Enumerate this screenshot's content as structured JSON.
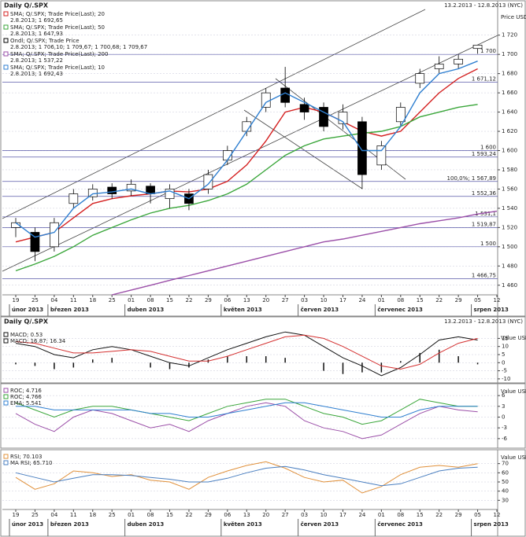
{
  "chart_data": [
    {
      "type": "candlestick",
      "title": "Daily Q/.SPX",
      "date_range": "13.2.2013 - 12.8.2013 (NYC)",
      "axis_label": "Price USD",
      "ylim": [
        1450,
        1750
      ],
      "yticks": [
        {
          "value": 1460,
          "label": "1 460"
        },
        {
          "value": 1480,
          "label": "1 480"
        },
        {
          "value": 1500,
          "label": "1 500"
        },
        {
          "value": 1520,
          "label": "1 520"
        },
        {
          "value": 1540,
          "label": "1 540"
        },
        {
          "value": 1560,
          "label": "1 560"
        },
        {
          "value": 1580,
          "label": "1 580"
        },
        {
          "value": 1600,
          "label": "1 600"
        },
        {
          "value": 1620,
          "label": "1 620"
        },
        {
          "value": 1640,
          "label": "1 640"
        },
        {
          "value": 1660,
          "label": "1 660"
        },
        {
          "value": 1680,
          "label": "1 680"
        },
        {
          "value": 1700,
          "label": "1 700"
        },
        {
          "value": 1720,
          "label": "1 720"
        }
      ],
      "categories": [
        "19",
        "25",
        "04",
        "11",
        "18",
        "25",
        "01",
        "08",
        "15",
        "22",
        "29",
        "06",
        "13",
        "20",
        "27",
        "03",
        "10",
        "17",
        "24",
        "01",
        "08",
        "15",
        "22",
        "29",
        "05",
        "12"
      ],
      "months": [
        "únor 2013",
        "březen 2013",
        "duben 2013",
        "květen 2013",
        "červen 2013",
        "červenec 2013",
        "srpen 2013"
      ],
      "month_starts": [
        0,
        2,
        6,
        11,
        15,
        19,
        24
      ],
      "levels": [
        {
          "value": 1700,
          "label": "1 700"
        },
        {
          "value": 1671.12,
          "label": "1 671,12"
        },
        {
          "value": 1600,
          "label": "1 600"
        },
        {
          "value": 1593.24,
          "label": "1 593,24"
        },
        {
          "value": 1567.89,
          "label": "100,0%; 1 567,89"
        },
        {
          "value": 1552.36,
          "label": "1 552,36"
        },
        {
          "value": 1531.1,
          "label": "1 531,1"
        },
        {
          "value": 1519.87,
          "label": "1 519,87"
        },
        {
          "value": 1500,
          "label": "1 500"
        },
        {
          "value": 1466.75,
          "label": "1 466,75"
        }
      ],
      "series": [
        {
          "name": "SMA; Q/.SPX; Trade Price(Last); 20",
          "label": "2.8.2013; 1 692,65",
          "color": "#d42020",
          "kind": "line",
          "values": [
            1505,
            1510,
            1515,
            1530,
            1545,
            1550,
            1553,
            1555,
            1558,
            1557,
            1560,
            1568,
            1585,
            1610,
            1640,
            1645,
            1640,
            1630,
            1620,
            1615,
            1620,
            1640,
            1660,
            1675,
            1685,
            null
          ]
        },
        {
          "name": "SMA; Q/.SPX; Trade Price(Last); 50",
          "label": "2.8.2013; 1 647,93",
          "color": "#3aa63a",
          "kind": "line",
          "values": [
            1475,
            1482,
            1490,
            1500,
            1512,
            1520,
            1528,
            1535,
            1540,
            1543,
            1548,
            1555,
            1565,
            1580,
            1595,
            1605,
            1612,
            1615,
            1618,
            1620,
            1625,
            1635,
            1640,
            1645,
            1648,
            null
          ]
        },
        {
          "name": "Ondl; Q/.SPX; Trade Price",
          "label": "2.8.2013; 1 706,10; 1 709,67; 1 700,68; 1 709,67",
          "color": "#000000",
          "kind": "candlestick",
          "open": [
            1520,
            1515,
            1500,
            1545,
            1552,
            1562,
            1558,
            1563,
            1550,
            1555,
            1560,
            1590,
            1620,
            1645,
            1665,
            1648,
            1645,
            1628,
            1630,
            1585,
            1630,
            1670,
            1685,
            1690,
            1706.1,
            null
          ],
          "high": [
            1530,
            1520,
            1530,
            1560,
            1565,
            1566,
            1570,
            1566,
            1565,
            1560,
            1580,
            1605,
            1635,
            1665,
            1687,
            1655,
            1650,
            1648,
            1635,
            1610,
            1650,
            1685,
            1698,
            1700,
            1709.67,
            null
          ],
          "low": [
            1510,
            1485,
            1495,
            1540,
            1548,
            1550,
            1553,
            1545,
            1540,
            1538,
            1555,
            1585,
            1615,
            1640,
            1645,
            1632,
            1620,
            1622,
            1560,
            1580,
            1625,
            1665,
            1680,
            1685,
            1700.68,
            null
          ],
          "close": [
            1525,
            1495,
            1525,
            1555,
            1560,
            1555,
            1565,
            1555,
            1560,
            1545,
            1575,
            1600,
            1630,
            1660,
            1650,
            1640,
            1625,
            1640,
            1575,
            1605,
            1645,
            1680,
            1690,
            1695,
            1709.67,
            null
          ]
        },
        {
          "name": "SMA; Q/.SPX; Trade Price(Last); 200",
          "label": "2.8.2013; 1 537,22",
          "color": "#9b4fa8",
          "kind": "line",
          "values": [
            null,
            null,
            null,
            null,
            null,
            1450,
            1455,
            1460,
            1465,
            1470,
            1475,
            1480,
            1485,
            1490,
            1495,
            1500,
            1505,
            1508,
            1512,
            1516,
            1520,
            1524,
            1527,
            1530,
            1534,
            1537
          ]
        },
        {
          "name": "SMA; Q/.SPX; Trade Price(Last); 10",
          "label": "2.8.2013; 1 692,43",
          "color": "#2f7fd0",
          "kind": "line",
          "values": [
            1525,
            1510,
            1515,
            1540,
            1555,
            1557,
            1560,
            1555,
            1558,
            1550,
            1565,
            1590,
            1620,
            1650,
            1660,
            1650,
            1640,
            1630,
            1600,
            1600,
            1625,
            1660,
            1680,
            1685,
            1693,
            null
          ]
        }
      ]
    },
    {
      "type": "line",
      "title": "Daily Q/.SPX",
      "date_range": "13.2.2013 - 12.8.2013 (NYC)",
      "axis_label": "Value USD",
      "ylim": [
        -12,
        22
      ],
      "yticks": [
        -10,
        -5,
        0,
        5,
        10,
        15
      ],
      "series": [
        {
          "name": "MACD; 0.53",
          "color": "#111111",
          "kind": "bar",
          "values": [
            -1,
            -2,
            -4,
            -3,
            2,
            3,
            0,
            -3,
            -4,
            -3,
            2,
            4,
            4,
            4,
            3,
            0,
            -5,
            -7,
            -6,
            -6,
            1,
            6,
            8,
            4,
            -1,
            null
          ]
        },
        {
          "name": "MACD; 16.87; 16.34",
          "color": "#111111",
          "kind": "line",
          "values": [
            12,
            10,
            5,
            3,
            8,
            10,
            8,
            4,
            0,
            -2,
            3,
            8,
            12,
            16,
            19,
            17,
            10,
            3,
            -2,
            -8,
            -3,
            5,
            14,
            16,
            14,
            null
          ]
        },
        {
          "color": "#d43030",
          "kind": "line",
          "values": [
            13,
            12,
            9,
            6,
            6,
            7,
            8,
            7,
            4,
            1,
            1,
            4,
            8,
            12,
            16,
            17,
            15,
            10,
            4,
            -2,
            -4,
            -1,
            6,
            12,
            15,
            null
          ]
        }
      ]
    },
    {
      "type": "line",
      "axis_label": "Value USD",
      "ylim": [
        -8,
        8
      ],
      "yticks": [
        -6,
        -3,
        0,
        3,
        6
      ],
      "series": [
        {
          "name": "ROC; 4.716",
          "color": "#9b4fa8",
          "kind": "line",
          "values": [
            1,
            -2,
            -4,
            0,
            2,
            1,
            -1,
            -3,
            -2,
            -4,
            -1,
            1,
            3,
            4,
            3,
            -1,
            -3,
            -4,
            -6,
            -5,
            -2,
            1,
            3,
            2,
            1.5,
            null
          ]
        },
        {
          "name": "ROC; 4.766",
          "color": "#3aa63a",
          "kind": "line",
          "values": [
            4,
            2,
            0,
            2,
            3,
            3,
            2,
            1,
            0,
            -1,
            1,
            3,
            4,
            5,
            5,
            3,
            1,
            0,
            -2,
            -1,
            2,
            5,
            4,
            3,
            3,
            null
          ]
        },
        {
          "name": "EMA; 5.541",
          "color": "#2f7fd0",
          "kind": "line",
          "values": [
            3,
            3,
            2,
            2,
            2,
            2,
            2,
            1,
            1,
            0,
            0,
            1,
            2,
            3,
            4,
            4,
            3,
            2,
            1,
            0,
            0,
            2,
            3,
            3,
            3,
            null
          ]
        }
      ]
    },
    {
      "type": "line",
      "axis_label": "Value USD",
      "ylim": [
        20,
        80
      ],
      "yticks": [
        30,
        40,
        50,
        60,
        70
      ],
      "categories": [
        "19",
        "25",
        "04",
        "11",
        "18",
        "25",
        "01",
        "08",
        "15",
        "22",
        "29",
        "06",
        "13",
        "20",
        "27",
        "03",
        "10",
        "17",
        "24",
        "01",
        "08",
        "15",
        "22",
        "29",
        "05",
        "12"
      ],
      "months": [
        "únor 2013",
        "březen 2013",
        "duben 2013",
        "květen 2013",
        "červen 2013",
        "červenec 2013",
        "srpen 2013"
      ],
      "month_starts": [
        0,
        2,
        6,
        11,
        15,
        19,
        24
      ],
      "series": [
        {
          "name": "RSI; 70.103",
          "color": "#e0903a",
          "kind": "line",
          "values": [
            55,
            42,
            48,
            62,
            60,
            56,
            58,
            52,
            50,
            42,
            55,
            62,
            68,
            72,
            65,
            55,
            50,
            52,
            38,
            45,
            58,
            66,
            68,
            66,
            70,
            null
          ]
        },
        {
          "name": "MA RSI; 65.710",
          "color": "#4a7fc0",
          "kind": "line",
          "values": [
            60,
            55,
            50,
            54,
            58,
            58,
            57,
            55,
            53,
            50,
            50,
            54,
            60,
            65,
            67,
            63,
            58,
            54,
            50,
            46,
            48,
            55,
            62,
            65,
            66,
            null
          ]
        }
      ]
    }
  ]
}
